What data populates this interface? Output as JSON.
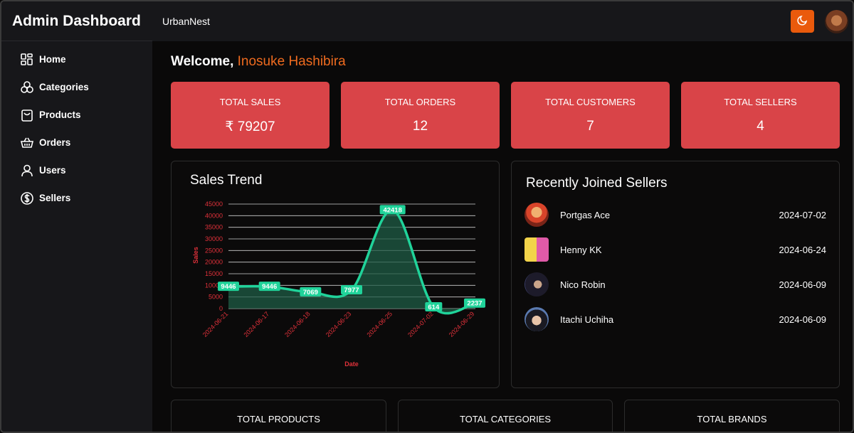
{
  "app": {
    "title": "Admin Dashboard",
    "store_name": "UrbanNest"
  },
  "sidebar": {
    "items": [
      {
        "label": "Home",
        "icon": "home-grid-icon"
      },
      {
        "label": "Categories",
        "icon": "categories-icon"
      },
      {
        "label": "Products",
        "icon": "shopping-bag-icon"
      },
      {
        "label": "Orders",
        "icon": "basket-icon"
      },
      {
        "label": "Users",
        "icon": "user-icon"
      },
      {
        "label": "Sellers",
        "icon": "dollar-circle-icon"
      }
    ]
  },
  "header": {
    "theme_toggle_icon": "moon-icon"
  },
  "welcome": {
    "prefix": "Welcome, ",
    "name": "Inosuke Hashibira"
  },
  "stats": [
    {
      "title": "TOTAL SALES",
      "value": "₹ 79207"
    },
    {
      "title": "TOTAL ORDERS",
      "value": "12"
    },
    {
      "title": "TOTAL CUSTOMERS",
      "value": "7"
    },
    {
      "title": "TOTAL SELLERS",
      "value": "4"
    }
  ],
  "sales_trend": {
    "title": "Sales Trend"
  },
  "chart_data": {
    "type": "area",
    "title": "Sales Trend",
    "xlabel": "Date",
    "ylabel": "Sales",
    "categories": [
      "2024-06-21",
      "2024-06-17",
      "2024-06-18",
      "2024-06-23",
      "2024-06-25",
      "2024-07-02",
      "2024-06-29"
    ],
    "values": [
      9446,
      9446,
      7069,
      7977,
      42418,
      614,
      2237
    ],
    "data_labels": [
      "9446",
      "9446",
      "7069",
      "7977",
      "42418",
      "614",
      "2237"
    ],
    "yticks": [
      0,
      5000,
      10000,
      15000,
      20000,
      25000,
      30000,
      35000,
      40000,
      45000
    ],
    "ylim": [
      0,
      45000
    ],
    "grid": true,
    "colors": {
      "line": "#20d39a",
      "fill": "#1f5c45",
      "axis_text": "#e0313a",
      "grid": "#cfcfcf"
    }
  },
  "recent_sellers": {
    "title": "Recently Joined Sellers",
    "items": [
      {
        "name": "Portgas Ace",
        "date": "2024-07-02"
      },
      {
        "name": "Henny KK",
        "date": "2024-06-24"
      },
      {
        "name": "Nico Robin",
        "date": "2024-06-09"
      },
      {
        "name": "Itachi Uchiha",
        "date": "2024-06-09"
      }
    ]
  },
  "bottom_stats": [
    {
      "title": "TOTAL PRODUCTS"
    },
    {
      "title": "TOTAL CATEGORIES"
    },
    {
      "title": "TOTAL BRANDS"
    }
  ]
}
